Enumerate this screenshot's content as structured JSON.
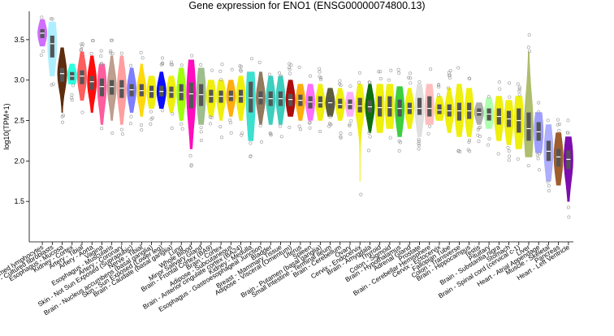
{
  "chart_data": {
    "type": "violin",
    "title": "Gene expression for ENO1 (ENSG00000074800.13)",
    "ylabel": "log10(TPM+1)",
    "xlabel": "",
    "ylim": [
      1.0,
      3.85
    ],
    "yticks": [
      1.5,
      2.0,
      2.5,
      3.0,
      3.5
    ],
    "ytick_labels": [
      "1.5",
      "2.0",
      "2.5",
      "3.0",
      "3.5"
    ],
    "grid": false,
    "series": [
      {
        "name": "Cells - EBV-transformed lymphocytes",
        "color": "#cc66ff",
        "min": 3.42,
        "q1": 3.52,
        "median": 3.58,
        "q3": 3.63,
        "max": 3.75
      },
      {
        "name": "Cells - Cultured fibroblasts",
        "color": "#aaeeff",
        "min": 3.05,
        "q1": 3.28,
        "median": 3.45,
        "q3": 3.55,
        "max": 3.72
      },
      {
        "name": "Esophagus - Mucosa",
        "color": "#552200",
        "min": 2.6,
        "q1": 2.98,
        "median": 3.08,
        "q3": 3.15,
        "max": 3.4
      },
      {
        "name": "Kidney - Cortex",
        "color": "#22ffdd",
        "min": 2.95,
        "q1": 3.0,
        "median": 3.05,
        "q3": 3.1,
        "max": 3.2
      },
      {
        "name": "Artery - Tibial",
        "color": "#ff5555",
        "min": 2.75,
        "q1": 2.95,
        "median": 3.05,
        "q3": 3.12,
        "max": 3.35
      },
      {
        "name": "Artery - Aorta",
        "color": "#ff0000",
        "min": 2.6,
        "q1": 2.88,
        "median": 2.98,
        "q3": 3.05,
        "max": 3.3
      },
      {
        "name": "Vagina",
        "color": "#ff5599",
        "min": 2.45,
        "q1": 2.8,
        "median": 2.92,
        "q3": 3.02,
        "max": 3.2
      },
      {
        "name": "Esophagus - Muscularis",
        "color": "#bb9988",
        "min": 2.5,
        "q1": 2.82,
        "median": 2.92,
        "q3": 3.0,
        "max": 3.3
      },
      {
        "name": "Artery - Coronary",
        "color": "#ff9999",
        "min": 2.45,
        "q1": 2.78,
        "median": 2.9,
        "q3": 3.0,
        "max": 3.3
      },
      {
        "name": "Skin - Not Sun Exposed (Suprapubic)",
        "color": "#7777ff",
        "min": 2.6,
        "q1": 2.8,
        "median": 2.88,
        "q3": 2.95,
        "max": 3.15
      },
      {
        "name": "Nerve - Tibial",
        "color": "#ffd700",
        "min": 2.55,
        "q1": 2.8,
        "median": 2.87,
        "q3": 2.95,
        "max": 3.2
      },
      {
        "name": "Brain - Nucleus accumbens (basal ganglia)",
        "color": "#eeee00",
        "min": 2.65,
        "q1": 2.78,
        "median": 2.86,
        "q3": 2.93,
        "max": 3.05
      },
      {
        "name": "Skin - Sun Exposed (Lower leg)",
        "color": "#0000ff",
        "min": 2.65,
        "q1": 2.8,
        "median": 2.86,
        "q3": 2.93,
        "max": 3.1
      },
      {
        "name": "Brain - Caudate (basal ganglia)",
        "color": "#eeee00",
        "min": 2.6,
        "q1": 2.78,
        "median": 2.85,
        "q3": 2.92,
        "max": 3.05
      },
      {
        "name": "Lung",
        "color": "#99ff00",
        "min": 2.5,
        "q1": 2.75,
        "median": 2.85,
        "q3": 2.95,
        "max": 3.15
      },
      {
        "name": "Whole Blood",
        "color": "#ff00bb",
        "min": 2.15,
        "q1": 2.65,
        "median": 2.83,
        "q3": 2.97,
        "max": 3.25
      },
      {
        "name": "Minor Salivary Gland",
        "color": "#99bb88",
        "min": 2.45,
        "q1": 2.68,
        "median": 2.82,
        "q3": 2.95,
        "max": 3.15
      },
      {
        "name": "Brain - Frontal Cortex (BA9)",
        "color": "#eeee00",
        "min": 2.55,
        "q1": 2.72,
        "median": 2.8,
        "q3": 2.88,
        "max": 3.0
      },
      {
        "name": "Brain - Cortex",
        "color": "#eeee00",
        "min": 2.5,
        "q1": 2.72,
        "median": 2.8,
        "q3": 2.87,
        "max": 3.0
      },
      {
        "name": "Adipose - Subcutaneous",
        "color": "#ffaa00",
        "min": 2.55,
        "q1": 2.74,
        "median": 2.8,
        "q3": 2.87,
        "max": 3.0
      },
      {
        "name": "Brain - Anterior cingulate cortex (BA24)",
        "color": "#eeee00",
        "min": 2.5,
        "q1": 2.72,
        "median": 2.8,
        "q3": 2.88,
        "max": 3.05
      },
      {
        "name": "Kidney - Medulla",
        "color": "#33ddcc",
        "min": 2.25,
        "q1": 2.6,
        "median": 2.78,
        "q3": 2.98,
        "max": 3.1
      },
      {
        "name": "Esophagus - Gastroesophageal Junction",
        "color": "#8b7355",
        "min": 2.45,
        "q1": 2.7,
        "median": 2.78,
        "q3": 2.86,
        "max": 3.1
      },
      {
        "name": "Bladder",
        "color": "#33ccbb",
        "min": 2.45,
        "q1": 2.68,
        "median": 2.77,
        "q3": 2.86,
        "max": 3.05
      },
      {
        "name": "Breast - Mammary Tissue",
        "color": "#33ccbb",
        "min": 2.45,
        "q1": 2.68,
        "median": 2.77,
        "q3": 2.86,
        "max": 3.05
      },
      {
        "name": "Adipose - Visceral (Omentum)",
        "color": "#aa0000",
        "min": 2.55,
        "q1": 2.68,
        "median": 2.76,
        "q3": 2.83,
        "max": 3.0
      },
      {
        "name": "Uterus",
        "color": "#ffaa00",
        "min": 2.5,
        "q1": 2.68,
        "median": 2.75,
        "q3": 2.82,
        "max": 2.95
      },
      {
        "name": "Spleen",
        "color": "#ff66ff",
        "min": 2.5,
        "q1": 2.65,
        "median": 2.73,
        "q3": 2.8,
        "max": 2.95
      },
      {
        "name": "Brain - Putamen (basal ganglia)",
        "color": "#eeee00",
        "min": 2.5,
        "q1": 2.66,
        "median": 2.72,
        "q3": 2.8,
        "max": 2.95
      },
      {
        "name": "Small Intestine - Terminal Ileum",
        "color": "#555533",
        "min": 2.55,
        "q1": 2.66,
        "median": 2.72,
        "q3": 2.78,
        "max": 2.9
      },
      {
        "name": "Brain - Cerebellum",
        "color": "#eeee00",
        "min": 2.5,
        "q1": 2.65,
        "median": 2.7,
        "q3": 2.77,
        "max": 2.9
      },
      {
        "name": "Ovary",
        "color": "#ffaaff",
        "min": 2.55,
        "q1": 2.64,
        "median": 2.7,
        "q3": 2.76,
        "max": 2.85
      },
      {
        "name": "Cervix - Endocervix",
        "color": "#eeee00",
        "min": 1.75,
        "q1": 2.6,
        "median": 2.68,
        "q3": 2.78,
        "max": 2.95
      },
      {
        "name": "Brain - Amygdala",
        "color": "#006600",
        "min": 2.35,
        "q1": 2.6,
        "median": 2.67,
        "q3": 2.75,
        "max": 2.95
      },
      {
        "name": "Thyroid",
        "color": "#eeee00",
        "min": 2.35,
        "q1": 2.55,
        "median": 2.66,
        "q3": 2.8,
        "max": 2.95
      },
      {
        "name": "Colon - Sigmoid",
        "color": "#eeee00",
        "min": 2.4,
        "q1": 2.55,
        "median": 2.66,
        "q3": 2.8,
        "max": 2.95
      },
      {
        "name": "Brain - Hypothalamus",
        "color": "#33cc33",
        "min": 2.3,
        "q1": 2.55,
        "median": 2.65,
        "q3": 2.76,
        "max": 2.92
      },
      {
        "name": "Adrenal Gland",
        "color": "#eeee00",
        "min": 2.4,
        "q1": 2.58,
        "median": 2.65,
        "q3": 2.72,
        "max": 2.9
      },
      {
        "name": "Prostate",
        "color": "#dddddd",
        "min": 2.3,
        "q1": 2.57,
        "median": 2.65,
        "q3": 2.78,
        "max": 2.95
      },
      {
        "name": "Brain - Cerebellar Hemisphere",
        "color": "#ffbbbb",
        "min": 2.45,
        "q1": 2.55,
        "median": 2.65,
        "q3": 2.8,
        "max": 2.95
      },
      {
        "name": "Cervix - Ectocervix",
        "color": "#eeee00",
        "min": 2.5,
        "q1": 2.58,
        "median": 2.63,
        "q3": 2.7,
        "max": 2.8
      },
      {
        "name": "Fallopian Tube",
        "color": "#eeee00",
        "min": 2.35,
        "q1": 2.55,
        "median": 2.62,
        "q3": 2.7,
        "max": 2.9
      },
      {
        "name": "Colon - Transverse",
        "color": "#eeee00",
        "min": 2.3,
        "q1": 2.5,
        "median": 2.62,
        "q3": 2.72,
        "max": 2.95
      },
      {
        "name": "Brain - Hippocampus",
        "color": "#eeee00",
        "min": 2.3,
        "q1": 2.52,
        "median": 2.62,
        "q3": 2.72,
        "max": 2.9
      },
      {
        "name": "Testis",
        "color": "#aaaaaa",
        "min": 2.45,
        "q1": 2.56,
        "median": 2.6,
        "q3": 2.65,
        "max": 2.72
      },
      {
        "name": "Pituitary",
        "color": "#aaffaa",
        "min": 2.4,
        "q1": 2.5,
        "median": 2.58,
        "q3": 2.65,
        "max": 2.78
      },
      {
        "name": "Brain - Substantia nigra",
        "color": "#eeee00",
        "min": 2.25,
        "q1": 2.45,
        "median": 2.55,
        "q3": 2.65,
        "max": 2.8
      },
      {
        "name": "Stomach",
        "color": "#eeee00",
        "min": 2.2,
        "q1": 2.42,
        "median": 2.52,
        "q3": 2.62,
        "max": 2.75
      },
      {
        "name": "Brain - Spinal cord (cervical c-1)",
        "color": "#eeee00",
        "min": 2.15,
        "q1": 2.35,
        "median": 2.5,
        "q3": 2.65,
        "max": 2.8
      },
      {
        "name": "Liver",
        "color": "#aabb66",
        "min": 2.05,
        "q1": 2.25,
        "median": 2.4,
        "q3": 2.6,
        "max": 3.35
      },
      {
        "name": "Heart - Atrial Appendage",
        "color": "#9999ff",
        "min": 2.1,
        "q1": 2.25,
        "median": 2.36,
        "q3": 2.48,
        "max": 2.6
      },
      {
        "name": "Muscle - Skeletal",
        "color": "#aaaaff",
        "min": 1.75,
        "q1": 2.0,
        "median": 2.12,
        "q3": 2.25,
        "max": 2.45
      },
      {
        "name": "Pancreas",
        "color": "#995522",
        "min": 1.7,
        "q1": 1.93,
        "median": 2.05,
        "q3": 2.15,
        "max": 2.35
      },
      {
        "name": "Heart - Left Ventricle",
        "color": "#7700aa",
        "min": 1.5,
        "q1": 1.9,
        "median": 2.02,
        "q3": 2.13,
        "max": 2.3
      }
    ]
  }
}
